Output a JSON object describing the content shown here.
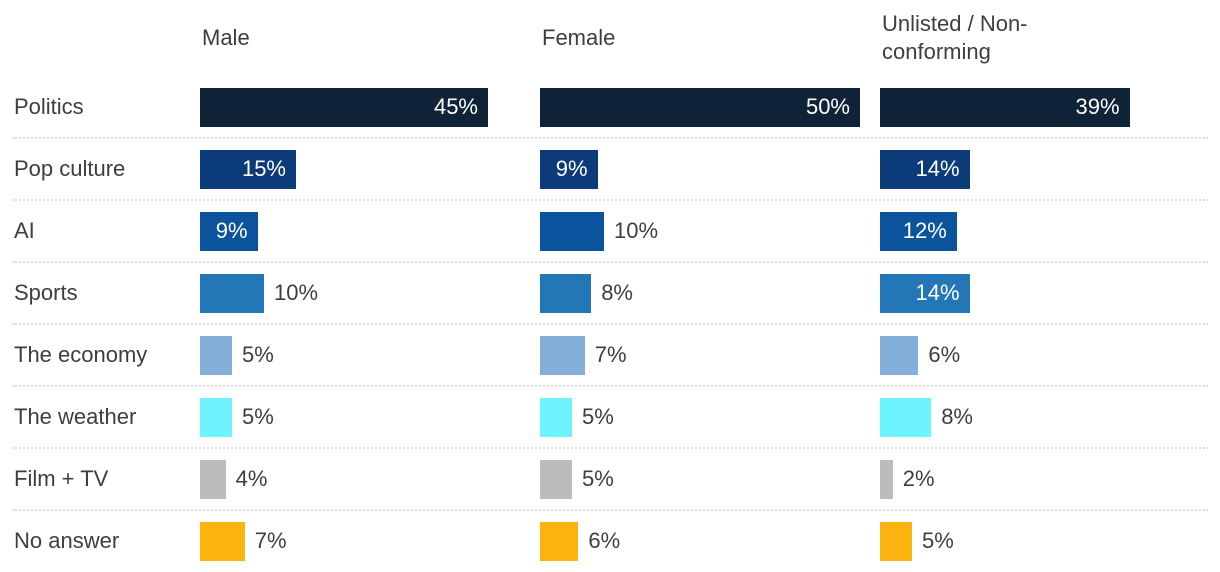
{
  "chart_data": {
    "type": "bar",
    "orientation": "horizontal",
    "categories": [
      "Politics",
      "Pop culture",
      "AI",
      "Sports",
      "The economy",
      "The weather",
      "Film + TV",
      "No answer"
    ],
    "series": [
      {
        "name": "Male",
        "values": [
          45,
          15,
          9,
          10,
          5,
          5,
          4,
          7
        ],
        "labels": [
          "45%",
          "15%",
          "9%",
          "10%",
          "5%",
          "5%",
          "4%",
          "7%"
        ]
      },
      {
        "name": "Female",
        "values": [
          50,
          9,
          10,
          8,
          7,
          5,
          5,
          6
        ],
        "labels": [
          "50%",
          "9%",
          "10%",
          "8%",
          "7%",
          "5%",
          "5%",
          "6%"
        ]
      },
      {
        "name": "Unlisted / Non-conforming",
        "values": [
          39,
          14,
          12,
          14,
          6,
          8,
          2,
          5
        ],
        "labels": [
          "39%",
          "14%",
          "12%",
          "14%",
          "6%",
          "8%",
          "2%",
          "5%"
        ]
      }
    ],
    "value_suffix": "%",
    "xlim": [
      0,
      50
    ],
    "grid": "dotted-row-separators",
    "legend_position": "column-headers",
    "category_colors": [
      "#0E2338",
      "#0C3B79",
      "#0B539C",
      "#2377B7",
      "#84AFD9",
      "#6EF4FE",
      "#BCBCBC",
      "#FDB410"
    ]
  },
  "styles": {
    "background": "#FFFFFF",
    "text_color": "#3E3E3E",
    "value_label_inside_color": "#FFFFFF",
    "separator_color": "#DEDEDE"
  }
}
